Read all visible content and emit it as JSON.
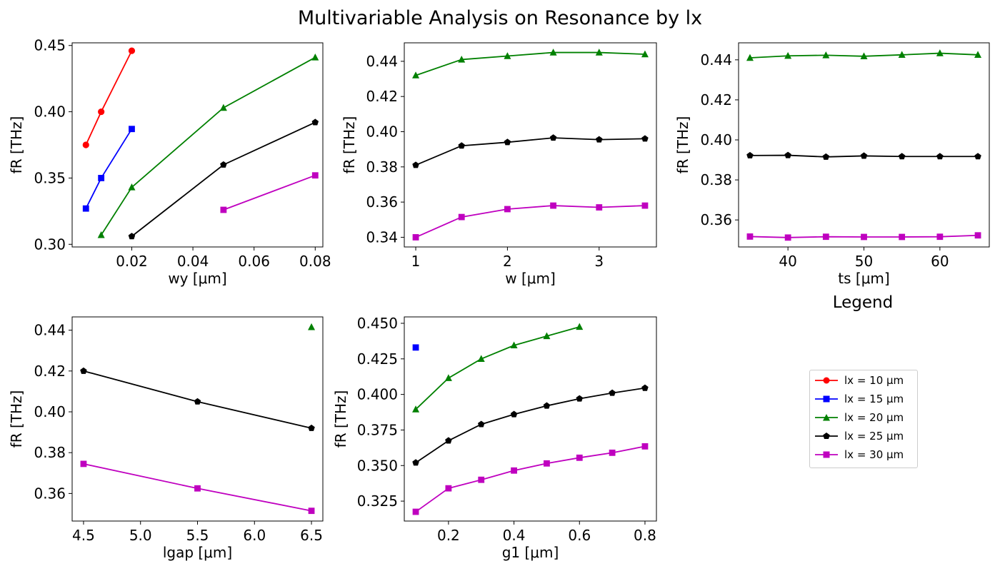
{
  "figure": {
    "suptitle": "Multivariable Analysis on Resonance by lx",
    "legend_title": "Legend"
  },
  "colors": {
    "lx10": "#ff0000",
    "lx15": "#0000ff",
    "lx20": "#008000",
    "lx25": "#000000",
    "lx30": "#bf00bf"
  },
  "chart_data": [
    {
      "type": "line",
      "xlabel": "wy [μm]",
      "ylabel": "fR [THz]",
      "xlim": [
        0.0005,
        0.0825
      ],
      "ylim": [
        0.298,
        0.452
      ],
      "xticks": [
        0.02,
        0.04,
        0.06,
        0.08
      ],
      "xtick_labels": [
        "0.02",
        "0.04",
        "0.06",
        "0.08"
      ],
      "yticks": [
        0.3,
        0.35,
        0.4,
        0.45
      ],
      "ytick_labels": [
        "0.30",
        "0.35",
        "0.40",
        "0.45"
      ],
      "series": [
        {
          "name": "lx = 10 μm",
          "color": "#ff0000",
          "marker": "circle",
          "x": [
            0.005,
            0.01,
            0.02
          ],
          "y": [
            0.375,
            0.4,
            0.446
          ]
        },
        {
          "name": "lx = 15 μm",
          "color": "#0000ff",
          "marker": "square",
          "x": [
            0.005,
            0.01,
            0.02
          ],
          "y": [
            0.327,
            0.35,
            0.387
          ]
        },
        {
          "name": "lx = 20 μm",
          "color": "#008000",
          "marker": "triangle",
          "x": [
            0.01,
            0.02,
            0.05,
            0.08
          ],
          "y": [
            0.307,
            0.343,
            0.403,
            0.441
          ]
        },
        {
          "name": "lx = 25 μm",
          "color": "#000000",
          "marker": "pentagon",
          "x": [
            0.02,
            0.05,
            0.08
          ],
          "y": [
            0.306,
            0.36,
            0.392
          ]
        },
        {
          "name": "lx = 30 μm",
          "color": "#bf00bf",
          "marker": "square",
          "x": [
            0.05,
            0.08
          ],
          "y": [
            0.326,
            0.352
          ]
        }
      ]
    },
    {
      "type": "line",
      "xlabel": "w [μm]",
      "ylabel": "fR [THz]",
      "xlim": [
        0.875,
        3.625
      ],
      "ylim": [
        0.3345,
        0.4505
      ],
      "xticks": [
        1,
        2,
        3
      ],
      "xtick_labels": [
        "1",
        "2",
        "3"
      ],
      "yticks": [
        0.34,
        0.36,
        0.38,
        0.4,
        0.42,
        0.44
      ],
      "ytick_labels": [
        "0.34",
        "0.36",
        "0.38",
        "0.40",
        "0.42",
        "0.44"
      ],
      "series": [
        {
          "name": "lx = 20 μm",
          "color": "#008000",
          "marker": "triangle",
          "x": [
            1,
            1.5,
            2,
            2.5,
            3,
            3.5
          ],
          "y": [
            0.432,
            0.441,
            0.443,
            0.445,
            0.445,
            0.444
          ]
        },
        {
          "name": "lx = 25 μm",
          "color": "#000000",
          "marker": "pentagon",
          "x": [
            1,
            1.5,
            2,
            2.5,
            3,
            3.5
          ],
          "y": [
            0.381,
            0.392,
            0.394,
            0.3965,
            0.3955,
            0.396
          ]
        },
        {
          "name": "lx = 30 μm",
          "color": "#bf00bf",
          "marker": "square",
          "x": [
            1,
            1.5,
            2,
            2.5,
            3,
            3.5
          ],
          "y": [
            0.34,
            0.3515,
            0.356,
            0.358,
            0.357,
            0.358
          ]
        }
      ]
    },
    {
      "type": "line",
      "xlabel": "ts [μm]",
      "ylabel": "fR [THz]",
      "xlim": [
        33.5,
        66.5
      ],
      "ylim": [
        0.3465,
        0.4485
      ],
      "xticks": [
        40,
        50,
        60
      ],
      "xtick_labels": [
        "40",
        "50",
        "60"
      ],
      "yticks": [
        0.36,
        0.38,
        0.4,
        0.42,
        0.44
      ],
      "ytick_labels": [
        "0.36",
        "0.38",
        "0.40",
        "0.42",
        "0.44"
      ],
      "series": [
        {
          "name": "lx = 20 μm",
          "color": "#008000",
          "marker": "triangle",
          "x": [
            35,
            40,
            45,
            50,
            55,
            60,
            65
          ],
          "y": [
            0.441,
            0.442,
            0.4423,
            0.4418,
            0.4425,
            0.4433,
            0.4425
          ]
        },
        {
          "name": "lx = 25 μm",
          "color": "#000000",
          "marker": "pentagon",
          "x": [
            35,
            40,
            45,
            50,
            55,
            60,
            65
          ],
          "y": [
            0.3922,
            0.3923,
            0.3915,
            0.392,
            0.3917,
            0.3917,
            0.3917
          ]
        },
        {
          "name": "lx = 30 μm",
          "color": "#bf00bf",
          "marker": "square",
          "x": [
            35,
            40,
            45,
            50,
            55,
            60,
            65
          ],
          "y": [
            0.3517,
            0.3512,
            0.3516,
            0.3515,
            0.3515,
            0.3516,
            0.3523
          ]
        }
      ]
    },
    {
      "type": "line",
      "xlabel": "lgap [μm]",
      "ylabel": "fR [THz]",
      "xlim": [
        4.4,
        6.6
      ],
      "ylim": [
        0.3465,
        0.4465
      ],
      "xticks": [
        4.5,
        5.0,
        5.5,
        6.0,
        6.5
      ],
      "xtick_labels": [
        "4.5",
        "5.0",
        "5.5",
        "6.0",
        "6.5"
      ],
      "yticks": [
        0.36,
        0.38,
        0.4,
        0.42,
        0.44
      ],
      "ytick_labels": [
        "0.36",
        "0.38",
        "0.40",
        "0.42",
        "0.44"
      ],
      "series": [
        {
          "name": "lx = 20 μm",
          "color": "#008000",
          "marker": "triangle",
          "x": [
            6.5
          ],
          "y": [
            0.4415
          ]
        },
        {
          "name": "lx = 25 μm",
          "color": "#000000",
          "marker": "pentagon",
          "x": [
            4.5,
            5.5,
            6.5
          ],
          "y": [
            0.42,
            0.405,
            0.392
          ]
        },
        {
          "name": "lx = 30 μm",
          "color": "#bf00bf",
          "marker": "square",
          "x": [
            4.5,
            5.5,
            6.5
          ],
          "y": [
            0.3745,
            0.3625,
            0.3515
          ]
        }
      ]
    },
    {
      "type": "line",
      "xlabel": "g1 [μm]",
      "ylabel": "fR [THz]",
      "xlim": [
        0.065,
        0.835
      ],
      "ylim": [
        0.311,
        0.4545
      ],
      "xticks": [
        0.2,
        0.4,
        0.6,
        0.8
      ],
      "xtick_labels": [
        "0.2",
        "0.4",
        "0.6",
        "0.8"
      ],
      "yticks": [
        0.325,
        0.35,
        0.375,
        0.4,
        0.425,
        0.45
      ],
      "ytick_labels": [
        "0.325",
        "0.350",
        "0.375",
        "0.400",
        "0.425",
        "0.450"
      ],
      "series": [
        {
          "name": "lx = 15 μm",
          "color": "#0000ff",
          "marker": "square",
          "x": [
            0.1
          ],
          "y": [
            0.433
          ]
        },
        {
          "name": "lx = 20 μm",
          "color": "#008000",
          "marker": "triangle",
          "x": [
            0.1,
            0.2,
            0.3,
            0.4,
            0.5,
            0.6
          ],
          "y": [
            0.3895,
            0.4115,
            0.425,
            0.4345,
            0.441,
            0.4475
          ]
        },
        {
          "name": "lx = 25 μm",
          "color": "#000000",
          "marker": "pentagon",
          "x": [
            0.1,
            0.2,
            0.3,
            0.4,
            0.5,
            0.6,
            0.7,
            0.8
          ],
          "y": [
            0.352,
            0.3675,
            0.379,
            0.386,
            0.392,
            0.397,
            0.401,
            0.4045
          ]
        },
        {
          "name": "lx = 30 μm",
          "color": "#bf00bf",
          "marker": "square",
          "x": [
            0.1,
            0.2,
            0.3,
            0.4,
            0.5,
            0.6,
            0.7,
            0.8
          ],
          "y": [
            0.3175,
            0.334,
            0.34,
            0.3465,
            0.3515,
            0.3555,
            0.359,
            0.3635
          ]
        }
      ]
    }
  ],
  "legend": {
    "entries": [
      {
        "label": "lx = 10 μm",
        "color": "#ff0000",
        "marker": "circle"
      },
      {
        "label": "lx = 15 μm",
        "color": "#0000ff",
        "marker": "square"
      },
      {
        "label": "lx = 20 μm",
        "color": "#008000",
        "marker": "triangle"
      },
      {
        "label": "lx = 25 μm",
        "color": "#000000",
        "marker": "pentagon"
      },
      {
        "label": "lx = 30 μm",
        "color": "#bf00bf",
        "marker": "square"
      }
    ]
  }
}
